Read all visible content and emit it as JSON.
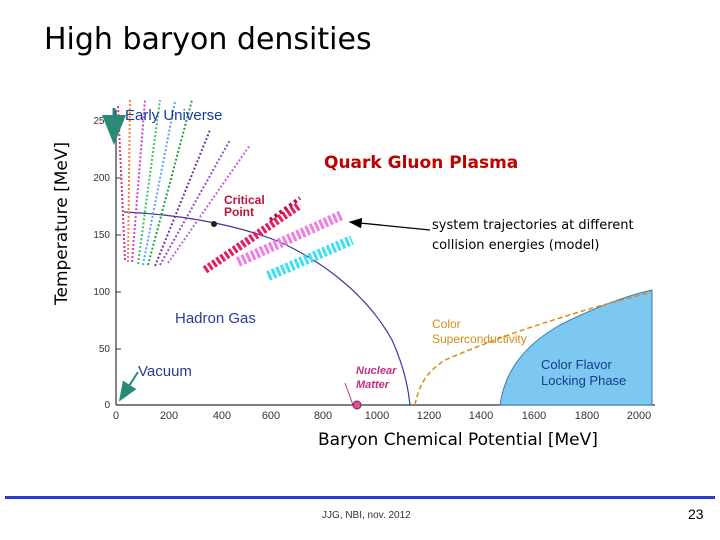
{
  "slide": {
    "title": "High baryon densities",
    "footer": "JJG, NBI, nov. 2012",
    "page_number": "23"
  },
  "axes": {
    "ylabel": "Temperature [MeV]",
    "xlabel": "Baryon Chemical Potential [MeV]",
    "y_ticks": [
      "0",
      "50",
      "100",
      "150",
      "200",
      "250"
    ],
    "x_ticks": [
      "0",
      "200",
      "400",
      "600",
      "800",
      "1000",
      "1200",
      "1400",
      "1600",
      "1800",
      "2000"
    ]
  },
  "labels": {
    "early_universe": "Early Universe",
    "critical_point": [
      "Critical",
      "Point"
    ],
    "hadron_gas": "Hadron Gas",
    "vacuum": "Vacuum",
    "nuclear_matter": [
      "Nuclear",
      "Matter"
    ],
    "color_superconductivity": [
      "Color",
      "Superconductivity"
    ],
    "cfl": [
      "Color Flavor",
      "Locking Phase"
    ],
    "qgp": "Quark Gluon Plasma",
    "trajectories": "system trajectories at different collision energies (model)"
  },
  "colors": {
    "phase_line": "#3a3a9a",
    "cfl_fill": "#7cc8f0",
    "critical_point": "#c0103a",
    "superconductivity": "#d98a1a",
    "accent_red": "#c00000",
    "footer_line": "#2a3bd0",
    "arrow_green": "#2a8a7a"
  }
}
